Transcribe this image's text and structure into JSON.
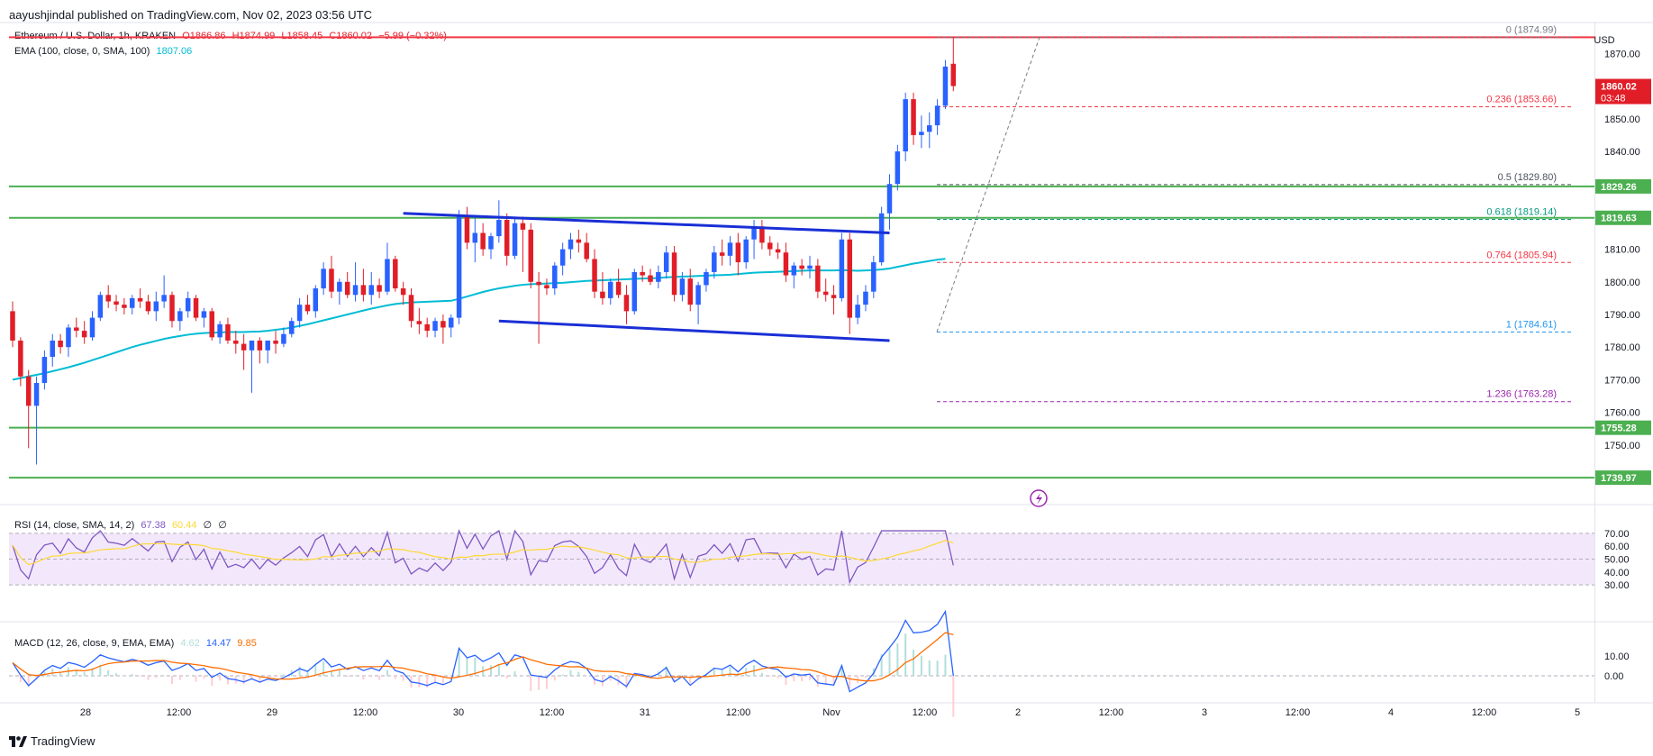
{
  "header": "aayushjindal published on TradingView.com, Nov 02, 2023 03:56 UTC",
  "symbol_line": {
    "name": "Ethereum / U.S. Dollar, 1h, KRAKEN",
    "o": "O1866.86",
    "h": "H1874.99",
    "l": "L1858.45",
    "c": "C1860.02",
    "change": "−5.99 (−0.32%)"
  },
  "ema_line": {
    "label": "EMA (100, close, 0, SMA, 100)",
    "value": "1807.06"
  },
  "rsi_line": {
    "label": "RSI (14, close, SMA, 14, 2)",
    "value": "67.38",
    "sma": "60.44",
    "extra1": "∅",
    "extra2": "∅"
  },
  "macd_line": {
    "label": "MACD (12, 26, close, 9, EMA, EMA)",
    "hist": "4.62",
    "macd": "14.47",
    "signal": "9.85"
  },
  "currency": "USD",
  "brand": "TradingView",
  "colors": {
    "up": "#2962ff",
    "down": "#e11e28",
    "ema": "#00bcd4",
    "green_line": "#4caf50",
    "red_line": "#f23645",
    "trend": "#1a2fd6",
    "rsi": "#7e57c2",
    "rsi_ma": "#fdd835",
    "macd": "#2962ff",
    "signal": "#ff6d00"
  },
  "chart_data": {
    "type": "candlestick",
    "title": "Ethereum / U.S. Dollar, 1h, KRAKEN",
    "price_axis": {
      "ticks": [
        1870,
        1860,
        1850,
        1840,
        1830,
        1820,
        1810,
        1800,
        1790,
        1780,
        1770,
        1760,
        1750
      ],
      "tick_labels": [
        "1870.00",
        "1860.00",
        "1850.00",
        "1840.00",
        "1830.00",
        "1820.00",
        "1810.00",
        "1800.00",
        "1790.00",
        "1780.00",
        "1770.00",
        "1760.00",
        "1750.00"
      ],
      "range": [
        1736,
        1879
      ]
    },
    "time_axis": [
      "28",
      "12:00",
      "29",
      "12:00",
      "30",
      "12:00",
      "31",
      "12:00",
      "Nov",
      "12:00",
      "2",
      "12:00",
      "3",
      "12:00",
      "4",
      "12:00",
      "5"
    ],
    "price_badges": [
      {
        "label": "1860.02",
        "sublabel": "03:48",
        "value": 1860.02,
        "color": "#e11e28"
      },
      {
        "label": "1829.26",
        "value": 1829.26,
        "color": "#4caf50"
      },
      {
        "label": "1819.63",
        "value": 1819.63,
        "color": "#4caf50"
      },
      {
        "label": "1755.28",
        "value": 1755.28,
        "color": "#4caf50"
      },
      {
        "label": "1739.97",
        "value": 1739.97,
        "color": "#4caf50"
      }
    ],
    "horizontal_levels": [
      {
        "value": 1874.99,
        "color": "#f23645",
        "style": "solid"
      },
      {
        "value": 1829.26,
        "color": "#4caf50",
        "style": "solid"
      },
      {
        "value": 1819.63,
        "color": "#4caf50",
        "style": "solid"
      },
      {
        "value": 1755.28,
        "color": "#4caf50",
        "style": "solid"
      },
      {
        "value": 1739.97,
        "color": "#4caf50",
        "style": "solid"
      }
    ],
    "fibonacci": [
      {
        "label": "0 (1874.99)",
        "value": 1874.99,
        "color": "#787b86"
      },
      {
        "label": "0.236 (1853.66)",
        "value": 1853.66,
        "color": "#f23645"
      },
      {
        "label": "0.5 (1829.80)",
        "value": 1829.8,
        "color": "#4c525e"
      },
      {
        "label": "0.618 (1819.14)",
        "value": 1819.14,
        "color": "#089981"
      },
      {
        "label": "0.764 (1805.94)",
        "value": 1805.94,
        "color": "#f23645"
      },
      {
        "label": "1 (1784.61)",
        "value": 1784.61,
        "color": "#2196f3"
      },
      {
        "label": "1.236 (1763.28)",
        "value": 1763.28,
        "color": "#9c27b0"
      }
    ],
    "trendlines": [
      {
        "from": [
          49,
          1821
        ],
        "to": [
          110,
          1815
        ]
      },
      {
        "from": [
          61,
          1788
        ],
        "to": [
          110,
          1782
        ]
      }
    ],
    "candles": [
      [
        1791,
        1794,
        1780,
        1782
      ],
      [
        1782,
        1783,
        1768,
        1771
      ],
      [
        1771,
        1773,
        1749,
        1762
      ],
      [
        1762,
        1771,
        1744,
        1769
      ],
      [
        1769,
        1779,
        1767,
        1777
      ],
      [
        1777,
        1784,
        1774,
        1782
      ],
      [
        1782,
        1784,
        1778,
        1780
      ],
      [
        1780,
        1787,
        1777,
        1786
      ],
      [
        1786,
        1789,
        1783,
        1785
      ],
      [
        1785,
        1788,
        1781,
        1783
      ],
      [
        1783,
        1791,
        1782,
        1789
      ],
      [
        1789,
        1797,
        1788,
        1796
      ],
      [
        1796,
        1799,
        1792,
        1794
      ],
      [
        1794,
        1796,
        1791,
        1793
      ],
      [
        1793,
        1795,
        1790,
        1792
      ],
      [
        1792,
        1796,
        1790,
        1795
      ],
      [
        1795,
        1798,
        1792,
        1794
      ],
      [
        1794,
        1796,
        1790,
        1791
      ],
      [
        1791,
        1797,
        1788,
        1794
      ],
      [
        1794,
        1802,
        1792,
        1796
      ],
      [
        1796,
        1797,
        1786,
        1788
      ],
      [
        1788,
        1792,
        1785,
        1791
      ],
      [
        1791,
        1797,
        1789,
        1795
      ],
      [
        1795,
        1796,
        1788,
        1789
      ],
      [
        1789,
        1792,
        1786,
        1791
      ],
      [
        1791,
        1792,
        1782,
        1783
      ],
      [
        1783,
        1788,
        1781,
        1787
      ],
      [
        1787,
        1789,
        1781,
        1782
      ],
      [
        1782,
        1785,
        1778,
        1781
      ],
      [
        1781,
        1784,
        1773,
        1779
      ],
      [
        1779,
        1782,
        1766,
        1782
      ],
      [
        1782,
        1783,
        1775,
        1779
      ],
      [
        1779,
        1782,
        1775,
        1782
      ],
      [
        1782,
        1785,
        1778,
        1781
      ],
      [
        1781,
        1786,
        1780,
        1784
      ],
      [
        1784,
        1789,
        1783,
        1788
      ],
      [
        1788,
        1795,
        1786,
        1793
      ],
      [
        1793,
        1796,
        1790,
        1791
      ],
      [
        1791,
        1799,
        1789,
        1798
      ],
      [
        1798,
        1806,
        1796,
        1804
      ],
      [
        1804,
        1808,
        1795,
        1797
      ],
      [
        1797,
        1801,
        1793,
        1800
      ],
      [
        1800,
        1803,
        1795,
        1796
      ],
      [
        1796,
        1806,
        1794,
        1799
      ],
      [
        1799,
        1804,
        1794,
        1796
      ],
      [
        1796,
        1803,
        1793,
        1799
      ],
      [
        1799,
        1801,
        1795,
        1797
      ],
      [
        1797,
        1812,
        1796,
        1807
      ],
      [
        1807,
        1808,
        1797,
        1798
      ],
      [
        1798,
        1800,
        1793,
        1796
      ],
      [
        1796,
        1798,
        1786,
        1788
      ],
      [
        1788,
        1792,
        1784,
        1787
      ],
      [
        1787,
        1789,
        1783,
        1785
      ],
      [
        1785,
        1789,
        1783,
        1788
      ],
      [
        1788,
        1790,
        1781,
        1786
      ],
      [
        1786,
        1790,
        1783,
        1789
      ],
      [
        1789,
        1822,
        1787,
        1820
      ],
      [
        1820,
        1823,
        1810,
        1812
      ],
      [
        1812,
        1820,
        1806,
        1815
      ],
      [
        1815,
        1818,
        1808,
        1810
      ],
      [
        1810,
        1815,
        1807,
        1814
      ],
      [
        1814,
        1825,
        1812,
        1819
      ],
      [
        1819,
        1821,
        1805,
        1808
      ],
      [
        1808,
        1820,
        1807,
        1818
      ],
      [
        1818,
        1820,
        1803,
        1816
      ],
      [
        1816,
        1818,
        1798,
        1800
      ],
      [
        1800,
        1803,
        1781,
        1799
      ],
      [
        1799,
        1801,
        1796,
        1798
      ],
      [
        1798,
        1806,
        1796,
        1805
      ],
      [
        1805,
        1812,
        1802,
        1810
      ],
      [
        1810,
        1815,
        1807,
        1813
      ],
      [
        1813,
        1816,
        1809,
        1812
      ],
      [
        1812,
        1815,
        1806,
        1807
      ],
      [
        1807,
        1810,
        1795,
        1797
      ],
      [
        1797,
        1803,
        1793,
        1795
      ],
      [
        1795,
        1801,
        1793,
        1800
      ],
      [
        1800,
        1804,
        1795,
        1796
      ],
      [
        1796,
        1799,
        1787,
        1791
      ],
      [
        1791,
        1804,
        1790,
        1803
      ],
      [
        1803,
        1805,
        1800,
        1802
      ],
      [
        1802,
        1804,
        1799,
        1800
      ],
      [
        1800,
        1805,
        1798,
        1803
      ],
      [
        1803,
        1811,
        1801,
        1809
      ],
      [
        1809,
        1811,
        1794,
        1796
      ],
      [
        1796,
        1803,
        1794,
        1801
      ],
      [
        1801,
        1804,
        1791,
        1793
      ],
      [
        1793,
        1800,
        1787,
        1799
      ],
      [
        1799,
        1804,
        1797,
        1803
      ],
      [
        1803,
        1811,
        1801,
        1809
      ],
      [
        1809,
        1813,
        1805,
        1808
      ],
      [
        1808,
        1814,
        1805,
        1812
      ],
      [
        1812,
        1815,
        1802,
        1806
      ],
      [
        1806,
        1814,
        1804,
        1813
      ],
      [
        1813,
        1819,
        1807,
        1817
      ],
      [
        1817,
        1819,
        1810,
        1812
      ],
      [
        1812,
        1814,
        1808,
        1810
      ],
      [
        1810,
        1812,
        1807,
        1809
      ],
      [
        1809,
        1812,
        1800,
        1802
      ],
      [
        1802,
        1806,
        1798,
        1805
      ],
      [
        1805,
        1807,
        1802,
        1804
      ],
      [
        1804,
        1808,
        1801,
        1805
      ],
      [
        1805,
        1807,
        1795,
        1797
      ],
      [
        1797,
        1801,
        1794,
        1796
      ],
      [
        1796,
        1799,
        1790,
        1795
      ],
      [
        1795,
        1815,
        1794,
        1813
      ],
      [
        1813,
        1815,
        1784,
        1789
      ],
      [
        1789,
        1796,
        1787,
        1793
      ],
      [
        1793,
        1799,
        1791,
        1797
      ],
      [
        1797,
        1808,
        1795,
        1806
      ],
      [
        1806,
        1823,
        1805,
        1821
      ],
      [
        1821,
        1833,
        1816,
        1830
      ],
      [
        1830,
        1842,
        1828,
        1840
      ],
      [
        1840,
        1858,
        1837,
        1856
      ],
      [
        1856,
        1858,
        1842,
        1845
      ],
      [
        1845,
        1851,
        1841,
        1846
      ],
      [
        1846,
        1852,
        1841,
        1848
      ],
      [
        1848,
        1856,
        1845,
        1854
      ],
      [
        1854,
        1868,
        1853,
        1866
      ],
      [
        1866.86,
        1874.99,
        1858.45,
        1860.02
      ]
    ],
    "ema": [
      1770,
      1770.5,
      1771,
      1771.5,
      1772,
      1772.6,
      1773.2,
      1773.8,
      1774.5,
      1775.2,
      1776,
      1776.8,
      1777.6,
      1778.4,
      1779.2,
      1780,
      1780.7,
      1781.3,
      1781.9,
      1782.5,
      1783,
      1783.4,
      1783.8,
      1784.1,
      1784.3,
      1784.4,
      1784.5,
      1784.6,
      1784.6,
      1784.6,
      1784.7,
      1784.8,
      1785,
      1785.3,
      1785.6,
      1786,
      1786.5,
      1787,
      1787.6,
      1788.2,
      1788.8,
      1789.4,
      1790,
      1790.6,
      1791.2,
      1791.8,
      1792.3,
      1792.8,
      1793.2,
      1793.5,
      1793.7,
      1793.8,
      1793.9,
      1794,
      1794.1,
      1794.2,
      1794.8,
      1795.5,
      1796.2,
      1796.9,
      1797.5,
      1798,
      1798.4,
      1798.8,
      1799.1,
      1799.3,
      1799.4,
      1799.5,
      1799.6,
      1799.7,
      1799.9,
      1800.1,
      1800.3,
      1800.4,
      1800.5,
      1800.6,
      1800.7,
      1800.8,
      1800.9,
      1801,
      1801.1,
      1801.2,
      1801.4,
      1801.5,
      1801.6,
      1801.7,
      1801.8,
      1801.9,
      1802,
      1802.1,
      1802.2,
      1802.4,
      1802.6,
      1802.8,
      1802.9,
      1803,
      1803.1,
      1803.2,
      1803.3,
      1803.4,
      1803.5,
      1803.5,
      1803.5,
      1803.5,
      1803.6,
      1803.5,
      1803.4,
      1803.5,
      1803.6,
      1803.8,
      1804.1,
      1804.6,
      1805.1,
      1805.6,
      1806,
      1806.4,
      1806.8,
      1807.06
    ]
  }
}
